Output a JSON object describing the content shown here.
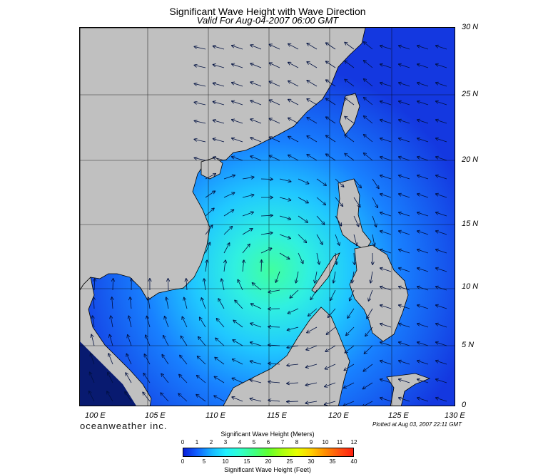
{
  "title": "Significant Wave Height with Wave Direction",
  "subtitle": "Valid For Aug-04-2007 06:00 GMT",
  "lat_labels": [
    "30 N",
    "25 N",
    "20 N",
    "15 N",
    "10 N",
    "5 N",
    "0"
  ],
  "lon_labels": [
    "100 E",
    "105 E",
    "110 E",
    "115 E",
    "120 E",
    "125 E",
    "130 E"
  ],
  "brand": "oceanweather inc.",
  "plotted": "Plotted at Aug 03, 2007 22:11 GMT",
  "colorbar": {
    "meters_title": "Significant Wave Height (Meters)",
    "feet_title": "Significant Wave Height (Feet)",
    "meters_ticks": [
      "0",
      "1",
      "2",
      "3",
      "4",
      "5",
      "6",
      "7",
      "8",
      "9",
      "10",
      "11",
      "12"
    ],
    "feet_ticks": [
      "0",
      "5",
      "10",
      "15",
      "20",
      "25",
      "30",
      "35",
      "40"
    ]
  },
  "colors": {
    "land": "#c0c0c0",
    "ocean_low": "#1a40e8",
    "ocean_mid": "#18c8ff",
    "ocean_high": "#40ff90"
  }
}
